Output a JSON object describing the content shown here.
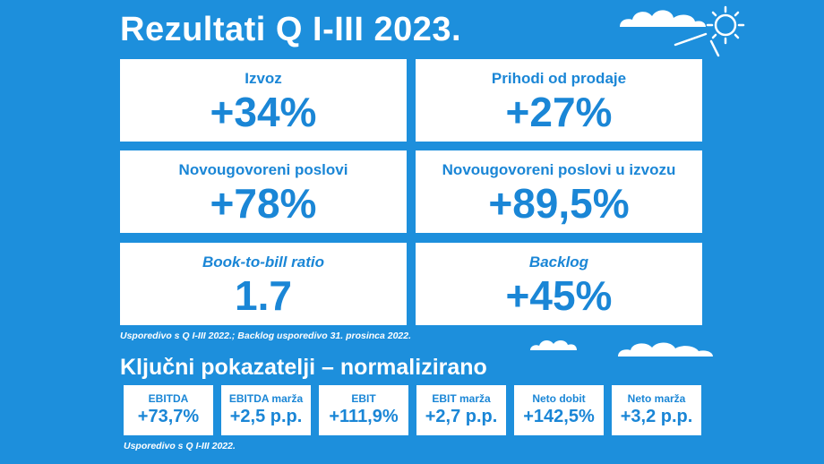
{
  "title": "Rezultati Q I-III 2023.",
  "cards": [
    {
      "label": "Izvoz",
      "value": "+34%"
    },
    {
      "label": "Prihodi od prodaje",
      "value": "+27%"
    },
    {
      "label": "Novougovoreni poslovi",
      "value": "+78%"
    },
    {
      "label": "Novougovoreni poslovi u izvozu",
      "value": "+89,5%"
    },
    {
      "label": "Book-to-bill ratio",
      "value": "1.7"
    },
    {
      "label": "Backlog",
      "value": "+45%"
    }
  ],
  "note1": "Usporedivo s Q I-III 2022.; Backlog usporedivo 31. prosinca 2022.",
  "subtitle": "Ključni pokazatelji – normalizirano",
  "kpis": [
    {
      "label": "EBITDA",
      "value": "+73,7%"
    },
    {
      "label": "EBITDA marža",
      "value": "+2,5 p.p."
    },
    {
      "label": "EBIT",
      "value": "+111,9%"
    },
    {
      "label": "EBIT marža",
      "value": "+2,7 p.p."
    },
    {
      "label": "Neto dobit",
      "value": "+142,5%"
    },
    {
      "label": "Neto marža",
      "value": "+3,2 p.p."
    }
  ],
  "note2": "Usporedivo s Q I-III 2022.",
  "icons": [
    "cloud-icon",
    "sun-icon"
  ],
  "colors": {
    "background": "#1d8fdc",
    "accent": "#1a86d6",
    "card": "#ffffff"
  }
}
